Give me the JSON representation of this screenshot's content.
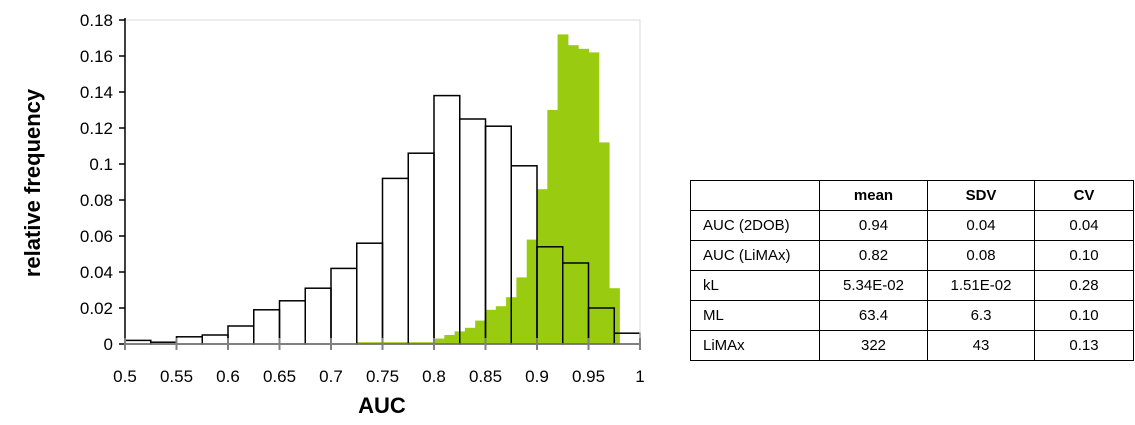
{
  "chart_data": {
    "type": "bar",
    "xlabel": "AUC",
    "ylabel": "relative frequency",
    "xlim": [
      0.5,
      1.0
    ],
    "ylim": [
      0,
      0.18
    ],
    "bin_width": 0.025,
    "x_ticks": [
      "0.5",
      "0.55",
      "0.6",
      "0.65",
      "0.7",
      "0.75",
      "0.8",
      "0.85",
      "0.9",
      "0.95",
      "1"
    ],
    "y_ticks": [
      "0",
      "0.02",
      "0.04",
      "0.06",
      "0.08",
      "0.1",
      "0.12",
      "0.14",
      "0.16",
      "0.18"
    ],
    "colors": {
      "green": "#99cc11",
      "outline": "#000000"
    },
    "series": [
      {
        "fill": "none",
        "bin_starts": [
          0.5,
          0.525,
          0.55,
          0.575,
          0.6,
          0.625,
          0.65,
          0.675,
          0.7,
          0.725,
          0.75,
          0.775,
          0.8,
          0.825,
          0.85,
          0.875,
          0.9,
          0.925,
          0.95,
          0.975
        ],
        "values": [
          0.002,
          0.001,
          0.004,
          0.005,
          0.01,
          0.019,
          0.024,
          0.031,
          0.042,
          0.056,
          0.092,
          0.106,
          0.138,
          0.125,
          0.121,
          0.099,
          0.054,
          0.045,
          0.02,
          0.006
        ]
      },
      {
        "fill": "green",
        "bin_starts": [
          0.725,
          0.75,
          0.775,
          0.8,
          0.81,
          0.82,
          0.83,
          0.84,
          0.85,
          0.86,
          0.87,
          0.88,
          0.89,
          0.9,
          0.91,
          0.92,
          0.93,
          0.94,
          0.95,
          0.96,
          0.97,
          0.98,
          0.99
        ],
        "bin_widths": [
          0.025,
          0.025,
          0.025,
          0.01,
          0.01,
          0.01,
          0.01,
          0.01,
          0.01,
          0.01,
          0.01,
          0.01,
          0.01,
          0.01,
          0.01,
          0.01,
          0.01,
          0.01,
          0.01,
          0.01,
          0.01,
          0.01,
          0.01
        ],
        "values": [
          0.001,
          0.001,
          0.001,
          0.003,
          0.005,
          0.007,
          0.009,
          0.013,
          0.019,
          0.021,
          0.026,
          0.037,
          0.058,
          0.086,
          0.13,
          0.172,
          0.166,
          0.164,
          0.162,
          0.112,
          0.031,
          0.0,
          0.0
        ]
      }
    ]
  },
  "table": {
    "headers": [
      "",
      "mean",
      "SDV",
      "CV"
    ],
    "rows": [
      [
        "AUC (2DOB)",
        "0.94",
        "0.04",
        "0.04"
      ],
      [
        "AUC (LiMAx)",
        "0.82",
        "0.08",
        "0.10"
      ],
      [
        "kL",
        "5.34E-02",
        "1.51E-02",
        "0.28"
      ],
      [
        "ML",
        "63.4",
        "6.3",
        "0.10"
      ],
      [
        "LiMAx",
        "322",
        "43",
        "0.13"
      ]
    ]
  }
}
